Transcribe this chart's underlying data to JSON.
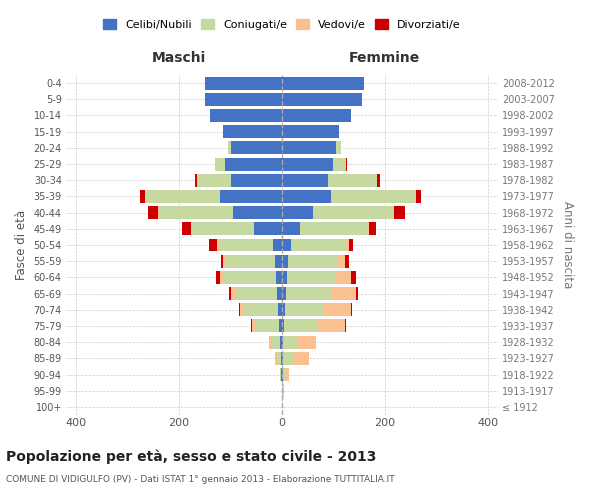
{
  "age_groups": [
    "100+",
    "95-99",
    "90-94",
    "85-89",
    "80-84",
    "75-79",
    "70-74",
    "65-69",
    "60-64",
    "55-59",
    "50-54",
    "45-49",
    "40-44",
    "35-39",
    "30-34",
    "25-29",
    "20-24",
    "15-19",
    "10-14",
    "5-9",
    "0-4"
  ],
  "birth_years": [
    "≤ 1912",
    "1913-1917",
    "1918-1922",
    "1923-1927",
    "1928-1932",
    "1933-1937",
    "1938-1942",
    "1943-1947",
    "1948-1952",
    "1953-1957",
    "1958-1962",
    "1963-1967",
    "1968-1972",
    "1973-1977",
    "1978-1982",
    "1983-1987",
    "1988-1992",
    "1993-1997",
    "1998-2002",
    "2003-2007",
    "2008-2012"
  ],
  "males": {
    "celibi": [
      0,
      0,
      1,
      2,
      3,
      5,
      8,
      10,
      12,
      14,
      18,
      55,
      95,
      120,
      100,
      110,
      100,
      115,
      140,
      150,
      150
    ],
    "coniugati": [
      0,
      0,
      2,
      8,
      18,
      45,
      65,
      80,
      100,
      95,
      105,
      120,
      145,
      145,
      65,
      20,
      5,
      0,
      0,
      0,
      0
    ],
    "vedovi": [
      0,
      0,
      1,
      3,
      5,
      8,
      8,
      10,
      8,
      5,
      3,
      2,
      2,
      1,
      0,
      0,
      0,
      0,
      0,
      0,
      0
    ],
    "divorziati": [
      0,
      0,
      0,
      0,
      0,
      2,
      3,
      3,
      8,
      5,
      15,
      18,
      18,
      10,
      5,
      0,
      0,
      0,
      0,
      0,
      0
    ]
  },
  "females": {
    "nubili": [
      0,
      0,
      1,
      2,
      2,
      3,
      5,
      8,
      10,
      12,
      18,
      35,
      60,
      95,
      90,
      100,
      105,
      110,
      135,
      155,
      160
    ],
    "coniugate": [
      0,
      2,
      5,
      20,
      30,
      65,
      75,
      90,
      95,
      95,
      105,
      130,
      155,
      165,
      95,
      25,
      10,
      0,
      0,
      0,
      0
    ],
    "vedove": [
      0,
      2,
      8,
      30,
      35,
      55,
      55,
      45,
      30,
      15,
      8,
      5,
      2,
      1,
      0,
      0,
      0,
      0,
      0,
      0,
      0
    ],
    "divorziate": [
      0,
      0,
      0,
      0,
      0,
      2,
      2,
      5,
      8,
      8,
      8,
      12,
      22,
      10,
      5,
      2,
      0,
      0,
      0,
      0,
      0
    ]
  },
  "colors": {
    "celibi": "#4472C4",
    "coniugati": "#C5D9A0",
    "vedovi": "#FAC090",
    "divorziati": "#CC0000"
  },
  "xlim": 420,
  "title": "Popolazione per età, sesso e stato civile - 2013",
  "subtitle": "COMUNE DI VIDIGULFO (PV) - Dati ISTAT 1° gennaio 2013 - Elaborazione TUTTITALIA.IT",
  "ylabel": "Fasce di età",
  "ylabel_right": "Anni di nascita",
  "xlabel_left": "Maschi",
  "xlabel_right": "Femmine",
  "legend_labels": [
    "Celibi/Nubili",
    "Coniugati/e",
    "Vedovi/e",
    "Divorziati/e"
  ],
  "background_color": "#ffffff",
  "grid_color": "#cccccc"
}
